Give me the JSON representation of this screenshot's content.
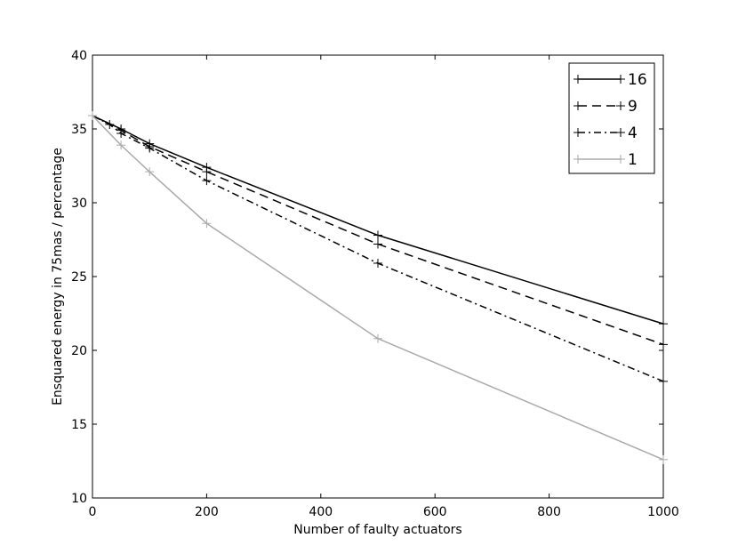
{
  "chart_data": {
    "type": "line",
    "xlabel": "Number of faulty actuators",
    "ylabel": "Ensquared energy in 75mas / percentage",
    "xlim": [
      0,
      1000
    ],
    "ylim": [
      10,
      40
    ],
    "xticks": [
      0,
      200,
      400,
      600,
      800,
      1000
    ],
    "yticks": [
      10,
      15,
      20,
      25,
      30,
      35,
      40
    ],
    "grid": false,
    "legend_position": "top-right",
    "series": [
      {
        "name": "16",
        "color": "#000000",
        "dash": "solid",
        "x": [
          0,
          50,
          100,
          200,
          500,
          1000
        ],
        "y": [
          35.9,
          35.0,
          34.0,
          32.4,
          27.8,
          21.8
        ]
      },
      {
        "name": "9",
        "color": "#000000",
        "dash": "dashed",
        "x": [
          0,
          50,
          100,
          200,
          500,
          1000
        ],
        "y": [
          35.9,
          34.9,
          33.8,
          32.1,
          27.2,
          20.4
        ]
      },
      {
        "name": "4",
        "color": "#000000",
        "dash": "dashdot",
        "x": [
          0,
          30,
          50,
          100,
          200,
          500,
          1000
        ],
        "y": [
          35.9,
          35.3,
          34.7,
          33.7,
          31.5,
          25.9,
          17.9
        ]
      },
      {
        "name": "1",
        "color": "#aaaaaa",
        "dash": "solid",
        "x": [
          0,
          50,
          100,
          200,
          500,
          1000
        ],
        "y": [
          35.9,
          33.9,
          32.1,
          28.6,
          20.8,
          12.6
        ]
      }
    ]
  }
}
